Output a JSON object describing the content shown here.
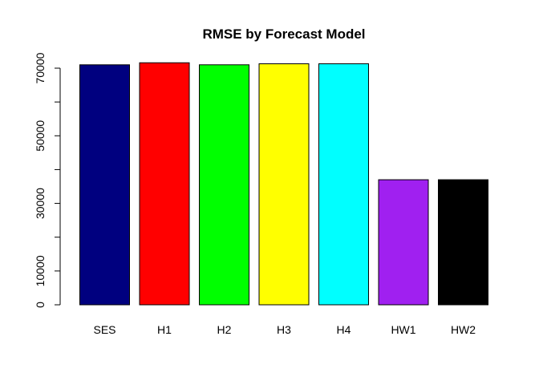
{
  "chart_data": {
    "type": "bar",
    "title": "RMSE by Forecast Model",
    "xlabel": "",
    "ylabel": "",
    "categories": [
      "SES",
      "H1",
      "H2",
      "H3",
      "H4",
      "HW1",
      "HW2"
    ],
    "values": [
      71000,
      71600,
      71000,
      71300,
      71300,
      37000,
      37000
    ],
    "colors": [
      "#00007F",
      "#FF0000",
      "#00FF00",
      "#FFFF00",
      "#00FFFF",
      "#A020F0",
      "#000000"
    ],
    "ylim": [
      0,
      72000
    ],
    "yticks": [
      0,
      10000,
      20000,
      30000,
      40000,
      50000,
      60000,
      70000
    ],
    "ytick_labels": [
      "0",
      "10000",
      "",
      "30000",
      "",
      "50000",
      "",
      "70000"
    ],
    "grid": false,
    "legend": "none"
  }
}
